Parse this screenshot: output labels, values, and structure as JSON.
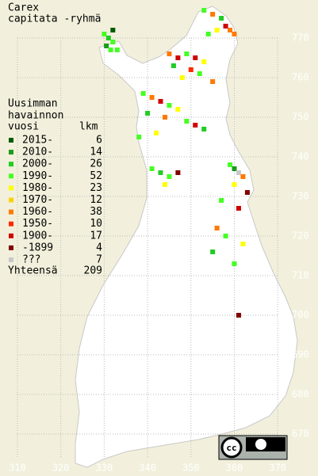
{
  "title": [
    "Carex",
    "capitata -ryhmä"
  ],
  "legend": {
    "header": [
      "Uusimman",
      "havainnon"
    ],
    "col_year": "vuosi",
    "col_count": "lkm",
    "rows": [
      {
        "label": "2015-",
        "count": 6,
        "color": "#005a00"
      },
      {
        "label": "2010-",
        "count": 14,
        "color": "#1a9a1a"
      },
      {
        "label": "2000-",
        "count": 26,
        "color": "#22cc22"
      },
      {
        "label": "1990-",
        "count": 52,
        "color": "#44ff22"
      },
      {
        "label": "1980-",
        "count": 23,
        "color": "#ffff00"
      },
      {
        "label": "1970-",
        "count": 12,
        "color": "#ffd000"
      },
      {
        "label": "1960-",
        "count": 38,
        "color": "#ff7a00"
      },
      {
        "label": "1950-",
        "count": 10,
        "color": "#ff2a00"
      },
      {
        "label": "1900-",
        "count": 17,
        "color": "#d00000"
      },
      {
        "label": "-1899",
        "count": 4,
        "color": "#800000"
      },
      {
        "label": "???",
        "count": 7,
        "color": "#c8c8c8"
      }
    ],
    "total_label": "Yhteensä",
    "total": 209
  },
  "x_labels": [
    310,
    320,
    330,
    340,
    350,
    360,
    370
  ],
  "y_labels": [
    670,
    680,
    690,
    700,
    710,
    720,
    730,
    740,
    750,
    760,
    770
  ],
  "points": [
    [
      330,
      771,
      3
    ],
    [
      331,
      770,
      2
    ],
    [
      332,
      769,
      3
    ],
    [
      330.5,
      768,
      1
    ],
    [
      331.5,
      767,
      3
    ],
    [
      333,
      767,
      3
    ],
    [
      332,
      772,
      0
    ],
    [
      353,
      777,
      3
    ],
    [
      355,
      776,
      6
    ],
    [
      357,
      775,
      2
    ],
    [
      359,
      772,
      6
    ],
    [
      360,
      771,
      6
    ],
    [
      356,
      772,
      4
    ],
    [
      354,
      771,
      3
    ],
    [
      358,
      773,
      8
    ],
    [
      345,
      766,
      6
    ],
    [
      347,
      765,
      8
    ],
    [
      349,
      766,
      3
    ],
    [
      351,
      765,
      8
    ],
    [
      353,
      764,
      4
    ],
    [
      346,
      763,
      2
    ],
    [
      350,
      762,
      7
    ],
    [
      352,
      761,
      3
    ],
    [
      348,
      760,
      4
    ],
    [
      355,
      759,
      6
    ],
    [
      339,
      756,
      3
    ],
    [
      341,
      755,
      6
    ],
    [
      343,
      754,
      8
    ],
    [
      345,
      753,
      3
    ],
    [
      347,
      752,
      4
    ],
    [
      340,
      751,
      2
    ],
    [
      344,
      750,
      6
    ],
    [
      349,
      749,
      3
    ],
    [
      351,
      748,
      8
    ],
    [
      353,
      747,
      2
    ],
    [
      338,
      745,
      3
    ],
    [
      342,
      746,
      4
    ],
    [
      341,
      737,
      3
    ],
    [
      343,
      736,
      2
    ],
    [
      345,
      735,
      3
    ],
    [
      347,
      736,
      9
    ],
    [
      344,
      733,
      4
    ],
    [
      359,
      738,
      3
    ],
    [
      360,
      737,
      1
    ],
    [
      361,
      736,
      10
    ],
    [
      362,
      735,
      6
    ],
    [
      360,
      733,
      4
    ],
    [
      363,
      731,
      9
    ],
    [
      357,
      729,
      3
    ],
    [
      361,
      727,
      8
    ],
    [
      356,
      722,
      6
    ],
    [
      358,
      720,
      3
    ],
    [
      355,
      716,
      2
    ],
    [
      360,
      713,
      3
    ],
    [
      362,
      718,
      4
    ],
    [
      361,
      700,
      9
    ]
  ]
}
